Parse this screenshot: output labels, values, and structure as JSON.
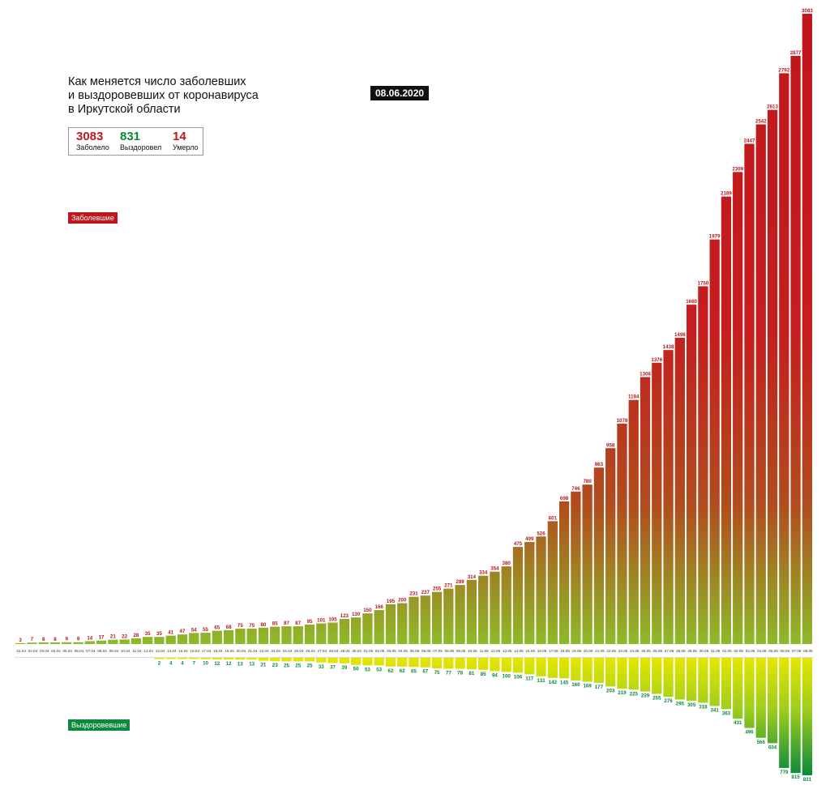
{
  "header": {
    "title_lines": [
      "Как меняется число заболевших",
      "и выздоровевших от коронавируса",
      "в Иркутской области"
    ],
    "date": "08.06.2020"
  },
  "stats": {
    "infected": {
      "value": "3083",
      "label": "Заболело",
      "color": "#c0161c"
    },
    "recovered": {
      "value": "831",
      "label": "Выздоровел",
      "color": "#0a8a3a"
    },
    "died": {
      "value": "14",
      "label": "Умерло",
      "color": "#c0161c"
    }
  },
  "legend": {
    "infected_label": "Заболевшие",
    "recovered_label": "Выздоровевшие",
    "infected_color": "#c0161c",
    "recovered_color": "#0a8a3a"
  },
  "chart_data": {
    "type": "bar",
    "title": "Как меняется число заболевших и выздоровевших от коронавируса в Иркутской области",
    "categories": [
      "01.04",
      "02.04",
      "03.04",
      "04.04",
      "05.04",
      "06.04",
      "07.04",
      "08.04",
      "09.04",
      "10.04",
      "11.04",
      "12.04",
      "13.04",
      "14.04",
      "15.04",
      "16.04",
      "17.04",
      "18.04",
      "19.04",
      "20.04",
      "21.04",
      "22.04",
      "23.04",
      "24.04",
      "25.04",
      "26.04",
      "27.04",
      "28.04",
      "29.04",
      "30.04",
      "01.05",
      "02.05",
      "03.05",
      "04.05",
      "05.05",
      "06.05",
      "07.05",
      "08.05",
      "09.05",
      "10.05",
      "11.05",
      "12.05",
      "13.05",
      "14.05",
      "15.05",
      "16.05",
      "17.05",
      "18.05",
      "19.05",
      "20.05",
      "21.05",
      "22.05",
      "23.05",
      "24.05",
      "25.05",
      "26.05",
      "27.05",
      "28.05",
      "29.05",
      "30.05",
      "31.05",
      "01.06",
      "02.06",
      "03.06",
      "04.06",
      "05.06",
      "06.06",
      "07.06",
      "08.06"
    ],
    "series": [
      {
        "name": "Заболевшие",
        "values": [
          3,
          7,
          8,
          8,
          9,
          9,
          14,
          17,
          21,
          22,
          28,
          35,
          35,
          41,
          47,
          54,
          55,
          65,
          68,
          75,
          75,
          80,
          85,
          87,
          87,
          95,
          101,
          105,
          123,
          130,
          150,
          166,
          195,
          200,
          231,
          237,
          255,
          271,
          289,
          314,
          334,
          354,
          380,
          475,
          499,
          526,
          601,
          698,
          746,
          780,
          863,
          958,
          1078,
          1194,
          1306,
          1376,
          1438,
          1498,
          1660,
          1750,
          1979,
          2189,
          2309,
          2447,
          2542,
          2613,
          2792,
          2877,
          3083
        ]
      },
      {
        "name": "Выздоровевшие",
        "values": [
          null,
          null,
          null,
          null,
          null,
          null,
          null,
          null,
          null,
          null,
          null,
          null,
          2,
          4,
          4,
          7,
          10,
          12,
          12,
          13,
          13,
          21,
          23,
          25,
          25,
          25,
          33,
          37,
          39,
          50,
          53,
          53,
          62,
          62,
          65,
          67,
          75,
          77,
          78,
          81,
          85,
          94,
          100,
          106,
          117,
          131,
          142,
          145,
          160,
          169,
          177,
          203,
          219,
          225,
          239,
          255,
          276,
          295,
          305,
          318,
          341,
          363,
          431,
          496,
          566,
          604,
          779,
          815,
          831
        ]
      }
    ],
    "colors": {
      "infected_top": "#c0161c",
      "infected_bottom": "#8dba2a",
      "recovered_top": "#e6e600",
      "recovered_bottom": "#0a8a3a"
    }
  }
}
